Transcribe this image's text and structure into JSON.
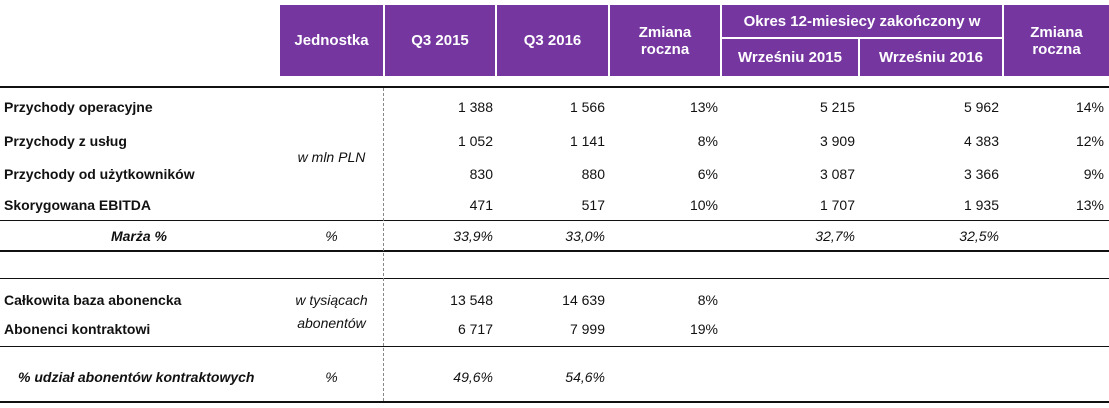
{
  "header": {
    "unit_col": "Jednostka",
    "q3_2015": "Q3 2015",
    "q3_2016": "Q3 2016",
    "yoy_q": "Zmiana roczna",
    "period": "Okres 12-miesiecy zakończony w",
    "ltm_2015": "Wrześniu 2015",
    "ltm_2016": "Wrześniu 2016",
    "yoy_ltm": "Zmiana roczna"
  },
  "revenue": {
    "unit": "w mln PLN",
    "rows": [
      {
        "label": "Przychody operacyjne",
        "q3_2015": "1 388",
        "q3_2016": "1 566",
        "yoy_q": "13%",
        "ltm_2015": "5 215",
        "ltm_2016": "5 962",
        "yoy_ltm": "14%"
      },
      {
        "label": "Przychody z usług",
        "q3_2015": "1 052",
        "q3_2016": "1 141",
        "yoy_q": "8%",
        "ltm_2015": "3 909",
        "ltm_2016": "4 383",
        "yoy_ltm": "12%"
      },
      {
        "label": "Przychody od użytkowników",
        "q3_2015": "830",
        "q3_2016": "880",
        "yoy_q": "6%",
        "ltm_2015": "3 087",
        "ltm_2016": "3 366",
        "yoy_ltm": "9%"
      },
      {
        "label": "Skorygowana EBITDA",
        "q3_2015": "471",
        "q3_2016": "517",
        "yoy_q": "10%",
        "ltm_2015": "1 707",
        "ltm_2016": "1 935",
        "yoy_ltm": "13%"
      }
    ]
  },
  "margin": {
    "label": "Marża %",
    "unit": "%",
    "q3_2015": "33,9%",
    "q3_2016": "33,0%",
    "ltm_2015": "32,7%",
    "ltm_2016": "32,5%"
  },
  "subscribers": {
    "unit": "w tysiącach abonentów",
    "rows": [
      {
        "label": "Całkowita baza abonencka",
        "q3_2015": "13 548",
        "q3_2016": "14 639",
        "yoy_q": "8%"
      },
      {
        "label": "Abonenci kontraktowi",
        "q3_2015": "6 717",
        "q3_2016": "7 999",
        "yoy_q": "19%"
      }
    ]
  },
  "share": {
    "label": "% udział abonentów kontraktowych",
    "unit": "%",
    "q3_2015": "49,6%",
    "q3_2016": "54,6%"
  }
}
